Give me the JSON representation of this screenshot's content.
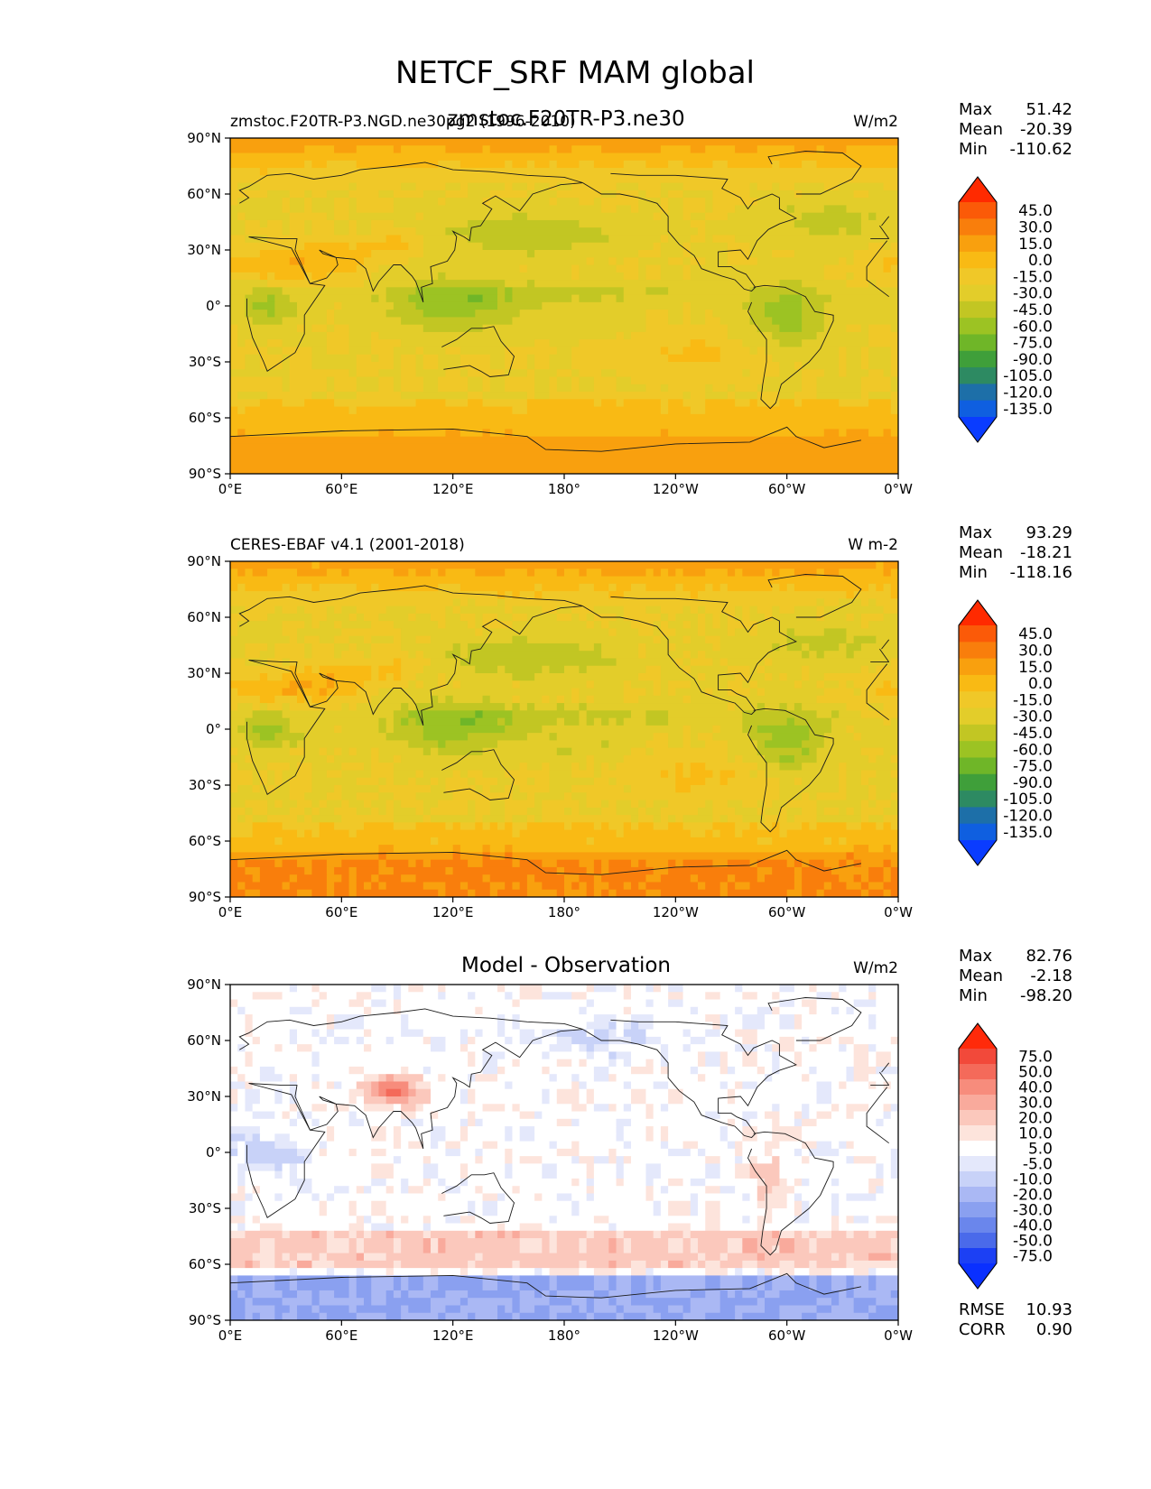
{
  "figure": {
    "title": "NETCF_SRF MAM global"
  },
  "colors": {
    "land_line": "#1a1a1a",
    "frame": "#000000"
  },
  "chart_data": [
    {
      "type": "heatmap",
      "panel": "test",
      "title_left": "zmstoc.F20TR-P3.NGD.ne30pg2 (1996-2010)",
      "title_center": "zmstoc.F20TR-P3.ne30",
      "title_right": "W/m2",
      "stats": [
        {
          "label": "Max",
          "value": "51.42"
        },
        {
          "label": "Mean",
          "value": "-20.39"
        },
        {
          "label": "Min",
          "value": "-110.62"
        }
      ],
      "xticks": [
        "0°E",
        "60°E",
        "120°E",
        "180°",
        "120°W",
        "60°W",
        "0°W"
      ],
      "yticks": [
        "90°N",
        "60°N",
        "30°N",
        "0°",
        "30°S",
        "60°S",
        "90°S"
      ],
      "xlim": [
        0,
        360
      ],
      "ylim": [
        -90,
        90
      ],
      "levels": [
        "45.0",
        "30.0",
        "15.0",
        "0.0",
        "-15.0",
        "-30.0",
        "-45.0",
        "-60.0",
        "-75.0",
        "-90.0",
        "-105.0",
        "-120.0",
        "-135.0"
      ],
      "colormap": [
        "#ff2a00",
        "#fb5a08",
        "#f97e0c",
        "#f9a00e",
        "#f9ba14",
        "#f0c828",
        "#e3cd2a",
        "#c2c623",
        "#9cc323",
        "#6fb628",
        "#3f9f3a",
        "#2d8a62",
        "#1d6fa8",
        "#0f5fe0",
        "#0a3cff"
      ]
    },
    {
      "type": "heatmap",
      "panel": "reference",
      "title_left": "CERES-EBAF v4.1 (2001-2018)",
      "title_center": "",
      "title_right": "W m-2",
      "stats": [
        {
          "label": "Max",
          "value": "93.29"
        },
        {
          "label": "Mean",
          "value": "-18.21"
        },
        {
          "label": "Min",
          "value": "-118.16"
        }
      ],
      "xticks": [
        "0°E",
        "60°E",
        "120°E",
        "180°",
        "120°W",
        "60°W",
        "0°W"
      ],
      "yticks": [
        "90°N",
        "60°N",
        "30°N",
        "0°",
        "30°S",
        "60°S",
        "90°S"
      ],
      "xlim": [
        0,
        360
      ],
      "ylim": [
        -90,
        90
      ],
      "levels": [
        "45.0",
        "30.0",
        "15.0",
        "0.0",
        "-15.0",
        "-30.0",
        "-45.0",
        "-60.0",
        "-75.0",
        "-90.0",
        "-105.0",
        "-120.0",
        "-135.0"
      ],
      "colormap": [
        "#ff2a00",
        "#fb5a08",
        "#f97e0c",
        "#f9a00e",
        "#f9ba14",
        "#f0c828",
        "#e3cd2a",
        "#c2c623",
        "#9cc323",
        "#6fb628",
        "#3f9f3a",
        "#2d8a62",
        "#1d6fa8",
        "#0f5fe0",
        "#0a3cff"
      ]
    },
    {
      "type": "heatmap",
      "panel": "difference",
      "title_left": "",
      "title_center": "Model - Observation",
      "title_right": "W/m2",
      "stats": [
        {
          "label": "Max",
          "value": "82.76"
        },
        {
          "label": "Mean",
          "value": "-2.18"
        },
        {
          "label": "Min",
          "value": "-98.20"
        }
      ],
      "extra_stats": [
        {
          "label": "RMSE",
          "value": "10.93"
        },
        {
          "label": "CORR",
          "value": "0.90"
        }
      ],
      "xticks": [
        "0°E",
        "60°E",
        "120°E",
        "180°",
        "120°W",
        "60°W",
        "0°W"
      ],
      "yticks": [
        "90°N",
        "60°N",
        "30°N",
        "0°",
        "30°S",
        "60°S",
        "90°S"
      ],
      "xlim": [
        0,
        360
      ],
      "ylim": [
        -90,
        90
      ],
      "levels": [
        "75.0",
        "50.0",
        "40.0",
        "30.0",
        "20.0",
        "10.0",
        "5.0",
        "-5.0",
        "-10.0",
        "-20.0",
        "-30.0",
        "-40.0",
        "-50.0",
        "-75.0"
      ],
      "colormap": [
        "#ff2a0a",
        "#f2493a",
        "#f46a5a",
        "#f78c7c",
        "#f9aa9c",
        "#fbc8bc",
        "#fde4dc",
        "#ffffff",
        "#e4e8fb",
        "#c8d2f8",
        "#aab8f4",
        "#8aa0f0",
        "#6a86ec",
        "#4a6aea",
        "#1c40f4",
        "#0a30ff"
      ]
    }
  ]
}
